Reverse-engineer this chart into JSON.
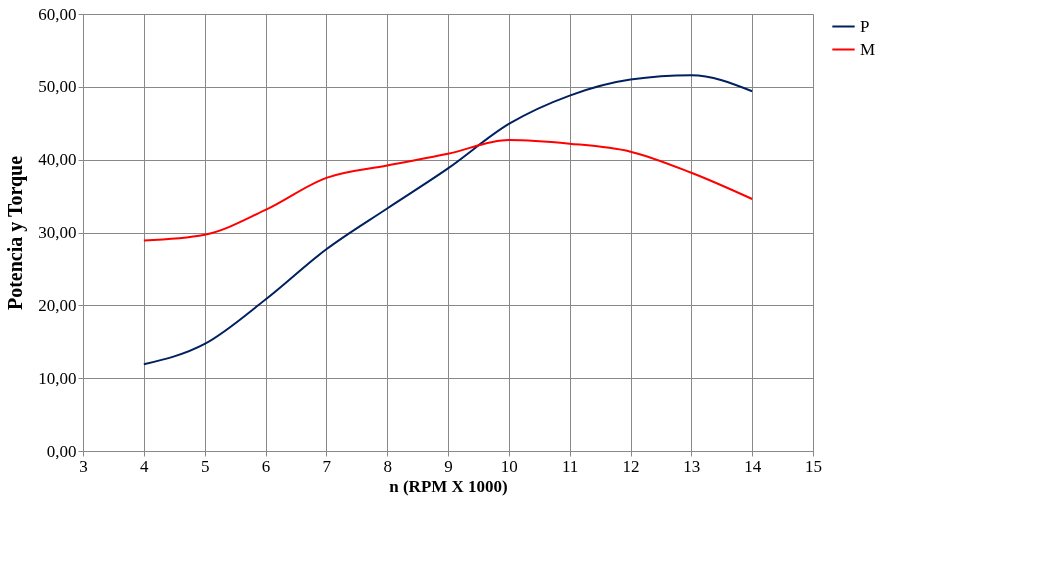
{
  "chart_data": {
    "type": "line",
    "xlabel": "n (RPM X 1000)",
    "ylabel": "Potencia y Torque",
    "x": [
      4,
      5,
      6,
      7,
      8,
      9,
      10,
      11,
      12,
      13,
      14
    ],
    "series": [
      {
        "name": "P",
        "color": "#002060",
        "values": [
          11.9,
          14.7,
          20.8,
          27.7,
          33.3,
          38.8,
          44.9,
          48.8,
          51.0,
          51.6,
          49.4
        ]
      },
      {
        "name": "M",
        "color": "#ff0000",
        "values": [
          28.9,
          29.7,
          33.1,
          37.5,
          39.2,
          40.8,
          42.7,
          42.2,
          41.1,
          38.2,
          34.6
        ]
      }
    ],
    "xlim": [
      3,
      15
    ],
    "xticks": [
      3,
      4,
      5,
      6,
      7,
      8,
      9,
      10,
      11,
      12,
      13,
      14,
      15
    ],
    "ylim": [
      0,
      60
    ],
    "yticks": [
      {
        "value": 0,
        "label": "0,00"
      },
      {
        "value": 10,
        "label": "10,00"
      },
      {
        "value": 20,
        "label": "20,00"
      },
      {
        "value": 30,
        "label": "30,00"
      },
      {
        "value": 40,
        "label": "40,00"
      },
      {
        "value": 50,
        "label": "50,00"
      },
      {
        "value": 60,
        "label": "60,00"
      }
    ],
    "grid": true,
    "legend": "right",
    "marker": "none",
    "line_style": "solid"
  }
}
